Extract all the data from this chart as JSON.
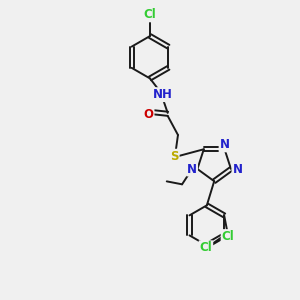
{
  "bg_color": "#f0f0f0",
  "bond_color": "#1a1a1a",
  "atom_colors": {
    "Cl": "#33cc33",
    "N": "#2222cc",
    "O": "#cc0000",
    "S": "#bbaa00",
    "H": "#228888",
    "C": "#1a1a1a"
  },
  "font_size_atom": 8.5,
  "fig_size": [
    3.0,
    3.0
  ],
  "dpi": 100,
  "lw": 1.4
}
